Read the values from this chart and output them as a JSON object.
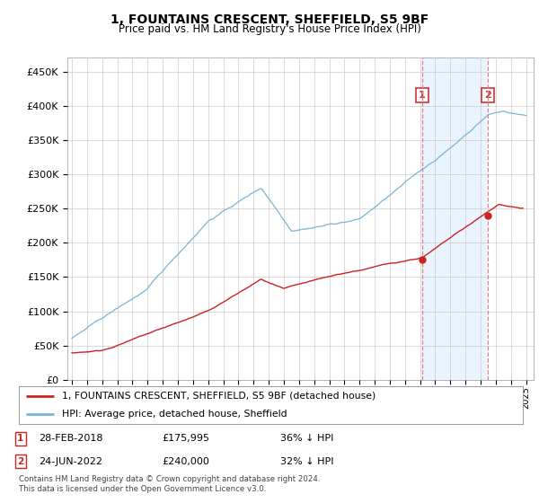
{
  "title": "1, FOUNTAINS CRESCENT, SHEFFIELD, S5 9BF",
  "subtitle": "Price paid vs. HM Land Registry's House Price Index (HPI)",
  "ylabel_ticks": [
    "£0",
    "£50K",
    "£100K",
    "£150K",
    "£200K",
    "£250K",
    "£300K",
    "£350K",
    "£400K",
    "£450K"
  ],
  "ytick_values": [
    0,
    50000,
    100000,
    150000,
    200000,
    250000,
    300000,
    350000,
    400000,
    450000
  ],
  "ylim": [
    0,
    470000
  ],
  "xlim_start": 1994.7,
  "xlim_end": 2025.5,
  "hpi_color": "#7ab4d8",
  "hpi_fill_color": "#ddeeff",
  "property_color": "#cc2222",
  "dashed_color": "#e08080",
  "grid_color": "#cccccc",
  "background_color": "#ffffff",
  "purchase1_x": 2018.12,
  "purchase1_y": 175995,
  "purchase2_x": 2022.47,
  "purchase2_y": 240000,
  "legend_entries": [
    "1, FOUNTAINS CRESCENT, SHEFFIELD, S5 9BF (detached house)",
    "HPI: Average price, detached house, Sheffield"
  ],
  "footnote1": "Contains HM Land Registry data © Crown copyright and database right 2024.",
  "footnote2": "This data is licensed under the Open Government Licence v3.0.",
  "table_rows": [
    {
      "num": "1",
      "date": "28-FEB-2018",
      "price": "£175,995",
      "hpi": "36% ↓ HPI"
    },
    {
      "num": "2",
      "date": "24-JUN-2022",
      "price": "£240,000",
      "hpi": "32% ↓ HPI"
    }
  ],
  "box_label_color": "#cc2222",
  "figsize": [
    6.0,
    5.6
  ],
  "dpi": 100
}
